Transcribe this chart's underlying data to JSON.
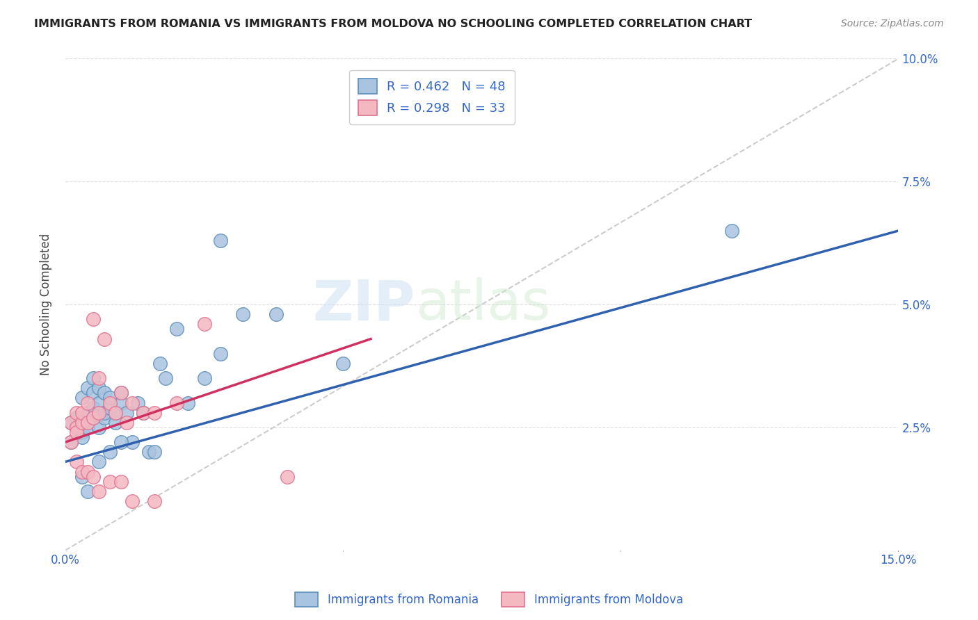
{
  "title": "IMMIGRANTS FROM ROMANIA VS IMMIGRANTS FROM MOLDOVA NO SCHOOLING COMPLETED CORRELATION CHART",
  "source": "Source: ZipAtlas.com",
  "ylabel": "No Schooling Completed",
  "xlim": [
    0.0,
    0.15
  ],
  "ylim": [
    0.0,
    0.1
  ],
  "romania_color": "#a8c4e0",
  "moldova_color": "#f4b8c1",
  "romania_edge": "#5b8db8",
  "moldova_edge": "#e07090",
  "trendline_romania": "#3060b0",
  "trendline_moldova": "#d03060",
  "diagonal_color": "#cccccc",
  "watermark_zip": "ZIP",
  "watermark_atlas": "atlas",
  "background_color": "#ffffff",
  "grid_color": "#dddddd",
  "romania_x": [
    0.001,
    0.001,
    0.002,
    0.002,
    0.003,
    0.003,
    0.003,
    0.004,
    0.004,
    0.004,
    0.005,
    0.005,
    0.005,
    0.005,
    0.006,
    0.006,
    0.006,
    0.007,
    0.007,
    0.007,
    0.008,
    0.008,
    0.009,
    0.009,
    0.01,
    0.01,
    0.011,
    0.012,
    0.013,
    0.014,
    0.015,
    0.016,
    0.017,
    0.018,
    0.02,
    0.022,
    0.025,
    0.028,
    0.032,
    0.038,
    0.003,
    0.004,
    0.006,
    0.008,
    0.01,
    0.05,
    0.12,
    0.028
  ],
  "romania_y": [
    0.026,
    0.022,
    0.025,
    0.027,
    0.024,
    0.023,
    0.031,
    0.028,
    0.025,
    0.033,
    0.027,
    0.032,
    0.029,
    0.035,
    0.025,
    0.03,
    0.033,
    0.027,
    0.028,
    0.032,
    0.029,
    0.031,
    0.026,
    0.028,
    0.03,
    0.032,
    0.028,
    0.022,
    0.03,
    0.028,
    0.02,
    0.02,
    0.038,
    0.035,
    0.045,
    0.03,
    0.035,
    0.04,
    0.048,
    0.048,
    0.015,
    0.012,
    0.018,
    0.02,
    0.022,
    0.038,
    0.065,
    0.063
  ],
  "moldova_x": [
    0.001,
    0.001,
    0.002,
    0.002,
    0.002,
    0.003,
    0.003,
    0.004,
    0.004,
    0.005,
    0.005,
    0.006,
    0.006,
    0.007,
    0.008,
    0.009,
    0.01,
    0.011,
    0.012,
    0.014,
    0.016,
    0.02,
    0.025,
    0.002,
    0.003,
    0.004,
    0.005,
    0.006,
    0.008,
    0.01,
    0.012,
    0.016,
    0.04
  ],
  "moldova_y": [
    0.026,
    0.022,
    0.025,
    0.024,
    0.028,
    0.026,
    0.028,
    0.026,
    0.03,
    0.027,
    0.047,
    0.028,
    0.035,
    0.043,
    0.03,
    0.028,
    0.032,
    0.026,
    0.03,
    0.028,
    0.028,
    0.03,
    0.046,
    0.018,
    0.016,
    0.016,
    0.015,
    0.012,
    0.014,
    0.014,
    0.01,
    0.01,
    0.015
  ],
  "romania_trendline_x": [
    0.0,
    0.15
  ],
  "romania_trendline_y": [
    0.018,
    0.065
  ],
  "moldova_trendline_x": [
    0.0,
    0.055
  ],
  "moldova_trendline_y": [
    0.022,
    0.043
  ]
}
